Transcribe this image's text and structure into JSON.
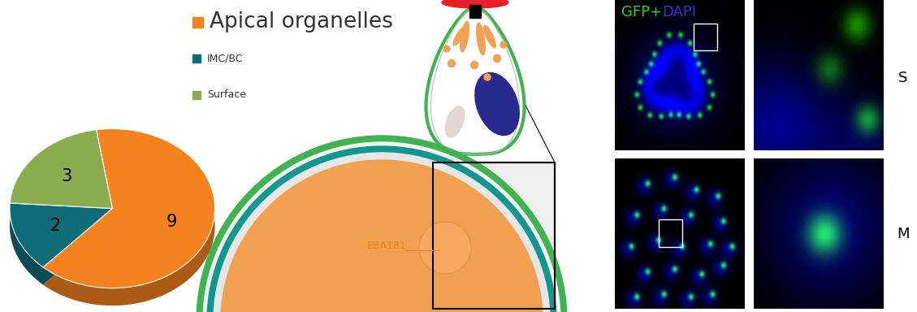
{
  "chart_data": {
    "type": "pie",
    "categories": [
      "Apical organelles",
      "IMC/BC",
      "Surface"
    ],
    "values": [
      9,
      2,
      3
    ],
    "colors": [
      "#f4821f",
      "#0f6b78",
      "#8aac4f"
    ],
    "data_labels": true
  },
  "diagram": {
    "labels": [
      {
        "text": "EBA181",
        "color": "#f4821f"
      }
    ]
  },
  "micrographs": {
    "title": [
      {
        "text": "GFP+",
        "color": "#2fd12f"
      },
      {
        "text": "DAPI",
        "color": "#3535d0"
      }
    ],
    "rows": [
      "S",
      "M"
    ]
  }
}
